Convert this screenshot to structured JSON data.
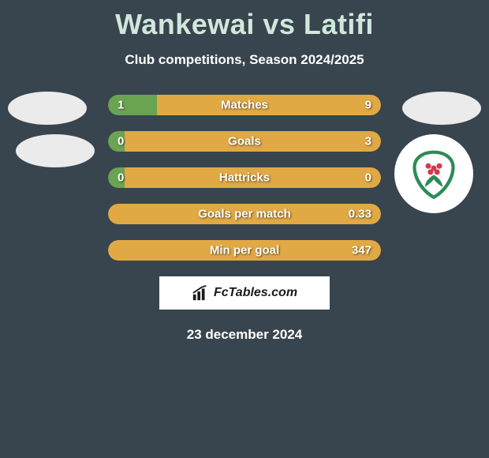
{
  "title": "Wankewai vs Latifi",
  "subtitle": "Club competitions, Season 2024/2025",
  "date": "23 december 2024",
  "brand": "FcTables.com",
  "colors": {
    "left_bar": "#6aa352",
    "right_bar": "#e1a944",
    "background": "#39454e",
    "title_color": "#d0e8dc"
  },
  "bars": [
    {
      "label": "Matches",
      "left_val": "1",
      "right_val": "9",
      "left_pct": 18,
      "right_pct": 82
    },
    {
      "label": "Goals",
      "left_val": "0",
      "right_val": "3",
      "left_pct": 6,
      "right_pct": 94
    },
    {
      "label": "Hattricks",
      "left_val": "0",
      "right_val": "0",
      "left_pct": 6,
      "right_pct": 94
    },
    {
      "label": "Goals per match",
      "left_val": "",
      "right_val": "0.33",
      "left_pct": 0,
      "right_pct": 100
    },
    {
      "label": "Min per goal",
      "left_val": "",
      "right_val": "347",
      "left_pct": 0,
      "right_pct": 100
    }
  ],
  "club_logo": {
    "outer": "#2e8b57",
    "inner_white": "#ffffff",
    "flower": "#d33a4a",
    "leaf": "#2e8b57"
  }
}
